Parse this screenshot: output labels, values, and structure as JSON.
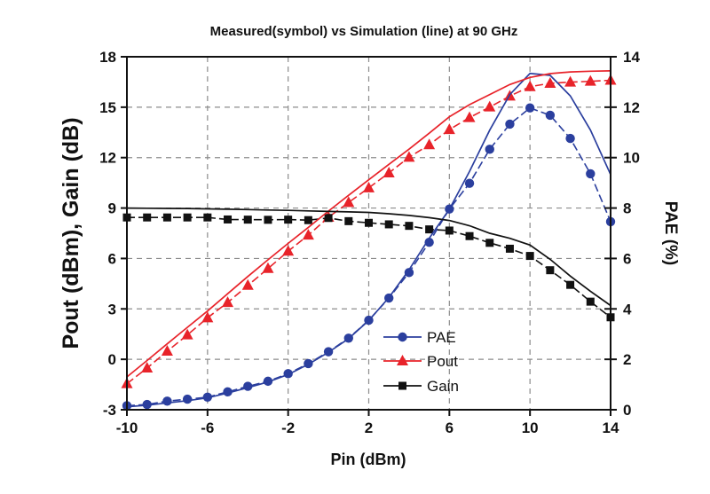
{
  "chart_data": {
    "type": "line",
    "title": "Measured(symbol) vs Simulation (line) at 90 GHz",
    "xlabel": "Pin (dBm)",
    "ylabel": "Pout (dBm), Gain (dB)",
    "y2label": "PAE (%)",
    "xlim": [
      -10,
      14
    ],
    "ylim": [
      -3,
      18
    ],
    "y2lim": [
      0,
      14
    ],
    "xticks": [
      -10,
      -6,
      -2,
      2,
      6,
      10,
      14
    ],
    "yticks": [
      -3,
      0,
      3,
      6,
      9,
      12,
      15,
      18
    ],
    "y2ticks": [
      0,
      2,
      4,
      6,
      8,
      10,
      12,
      14
    ],
    "grid": true,
    "legend_position": "lower-center",
    "legend": [
      {
        "name": "PAE",
        "marker": "circle",
        "color": "#2b3f9e"
      },
      {
        "name": "Pout",
        "marker": "triangle",
        "color": "#e8232a"
      },
      {
        "name": "Gain",
        "marker": "square",
        "color": "#111111"
      }
    ],
    "x": [
      -10,
      -9,
      -8,
      -7,
      -6,
      -5,
      -4,
      -3,
      -2,
      -1,
      0,
      1,
      2,
      3,
      4,
      5,
      6,
      7,
      8,
      9,
      10,
      11,
      12,
      13,
      14
    ],
    "series": [
      {
        "name": "PAE",
        "kind": "measured",
        "axis": "right",
        "color": "#2b3f9e",
        "marker": "circle",
        "values": [
          0.16,
          0.21,
          0.34,
          0.42,
          0.5,
          0.71,
          0.93,
          1.13,
          1.43,
          1.83,
          2.3,
          2.84,
          3.55,
          4.43,
          5.44,
          6.64,
          7.96,
          8.98,
          10.33,
          11.33,
          11.97,
          11.68,
          10.76,
          9.36,
          7.46
        ]
      },
      {
        "name": "Pout",
        "kind": "measured",
        "axis": "left",
        "color": "#e8232a",
        "marker": "triangle",
        "values": [
          -1.45,
          -0.52,
          0.48,
          1.45,
          2.47,
          3.38,
          4.4,
          5.4,
          6.43,
          7.39,
          8.45,
          9.33,
          10.2,
          11.09,
          12.02,
          12.76,
          13.67,
          14.38,
          15.01,
          15.66,
          16.22,
          16.42,
          16.49,
          16.54,
          16.6
        ]
      },
      {
        "name": "Gain",
        "kind": "measured",
        "axis": "left",
        "color": "#111111",
        "marker": "square",
        "values": [
          8.44,
          8.44,
          8.44,
          8.44,
          8.44,
          8.32,
          8.31,
          8.3,
          8.31,
          8.28,
          8.41,
          8.22,
          8.12,
          8.03,
          7.94,
          7.73,
          7.66,
          7.33,
          6.93,
          6.58,
          6.15,
          5.3,
          4.43,
          3.43,
          2.5
        ]
      },
      {
        "name": "PAE",
        "kind": "simulated",
        "axis": "right",
        "color": "#2b3f9e",
        "values": [
          0.12,
          0.18,
          0.27,
          0.36,
          0.47,
          0.66,
          0.88,
          1.1,
          1.4,
          1.8,
          2.28,
          2.82,
          3.54,
          4.45,
          5.55,
          6.8,
          7.95,
          9.45,
          11.09,
          12.5,
          13.34,
          13.26,
          12.45,
          11.09,
          9.33
        ]
      },
      {
        "name": "Pout",
        "kind": "simulated",
        "axis": "left",
        "color": "#e8232a",
        "values": [
          -1.05,
          -0.07,
          0.92,
          1.9,
          2.87,
          3.9,
          4.93,
          5.92,
          6.9,
          7.85,
          8.82,
          9.76,
          10.68,
          11.6,
          12.5,
          13.45,
          14.43,
          15.15,
          15.75,
          16.35,
          16.77,
          17.0,
          17.1,
          17.14,
          17.16
        ]
      },
      {
        "name": "Gain",
        "kind": "simulated",
        "axis": "left",
        "color": "#111111",
        "values": [
          9.0,
          8.99,
          8.98,
          8.97,
          8.95,
          8.93,
          8.91,
          8.88,
          8.86,
          8.83,
          8.8,
          8.77,
          8.74,
          8.66,
          8.56,
          8.43,
          8.26,
          7.95,
          7.5,
          7.2,
          6.8,
          5.95,
          4.95,
          4.05,
          3.2
        ]
      }
    ]
  }
}
